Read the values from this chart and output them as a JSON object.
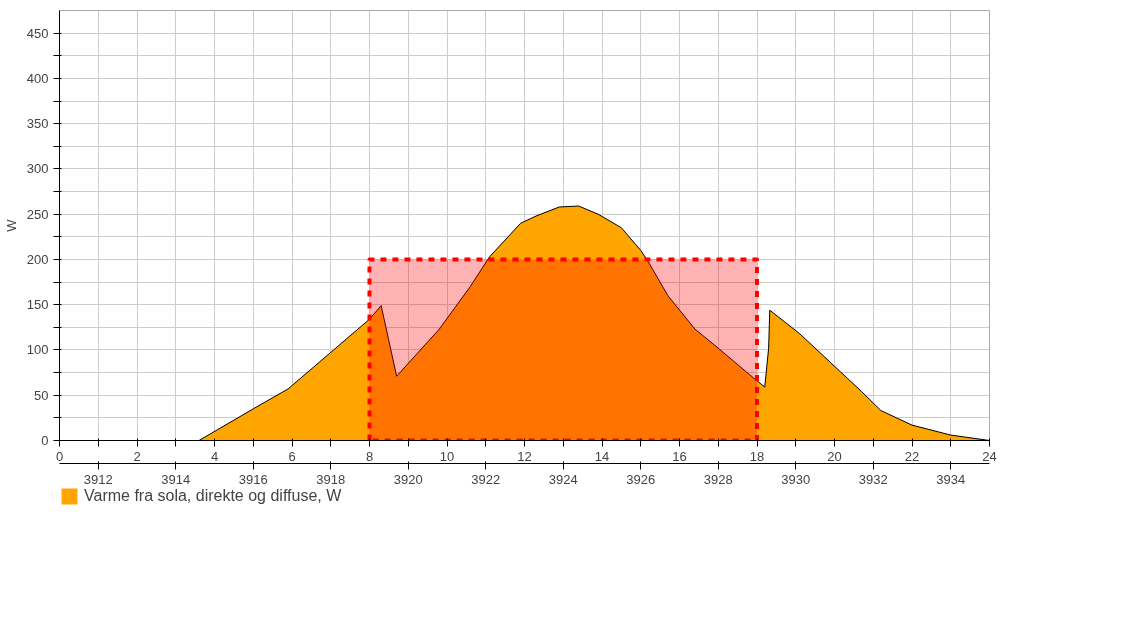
{
  "chart_data": {
    "type": "area",
    "ylabel": "W",
    "xlim": [
      0,
      24
    ],
    "ylim": [
      0,
      475
    ],
    "xticks": [
      0,
      {
        "value": 1,
        "label": null
      },
      2,
      {
        "value": 3,
        "label": null
      },
      4,
      {
        "value": 5,
        "label": null
      },
      6,
      {
        "value": 7,
        "label": null
      },
      8,
      {
        "value": 9,
        "label": null
      },
      10,
      {
        "value": 11,
        "label": null
      },
      12,
      {
        "value": 13,
        "label": null
      },
      14,
      {
        "value": 15,
        "label": null
      },
      16,
      {
        "value": 17,
        "label": null
      },
      18,
      {
        "value": 19,
        "label": null
      },
      20,
      {
        "value": 21,
        "label": null
      },
      22,
      {
        "value": 23,
        "label": null
      },
      24
    ],
    "yticks": [
      0,
      {
        "value": 25,
        "label": null
      },
      50,
      {
        "value": 75,
        "label": null
      },
      100,
      {
        "value": 125,
        "label": null
      },
      150,
      {
        "value": 175,
        "label": null
      },
      200,
      {
        "value": 225,
        "label": null
      },
      250,
      {
        "value": 275,
        "label": null
      },
      300,
      {
        "value": 325,
        "label": null
      },
      350,
      {
        "value": 375,
        "label": null
      },
      400,
      {
        "value": 425,
        "label": null
      },
      450
    ],
    "x2lim": [
      3911,
      3935
    ],
    "x2ticks": [
      3912,
      3914,
      3916,
      3918,
      3920,
      3922,
      3924,
      3926,
      3928,
      3930,
      3932,
      3934
    ],
    "grid": true,
    "legend": "bottom",
    "series": [
      {
        "name": "Varme fra sola, direkte og diffuse, W",
        "color": "#ffa500",
        "x": [
          0,
          3.6,
          5.0,
          5.9,
          8.0,
          8.3,
          8.7,
          9.8,
          10.6,
          11.1,
          11.9,
          12.3,
          12.9,
          13.4,
          13.9,
          14.5,
          15.0,
          15.2,
          15.7,
          16.4,
          17.0,
          17.8,
          18.2,
          18.3,
          18.33,
          19.1,
          19.9,
          20.7,
          21.2,
          22.0,
          23.0,
          24
        ],
        "values": [
          0,
          0,
          35,
          57,
          134,
          149,
          71,
          123,
          170,
          203,
          240,
          248,
          258,
          259,
          250,
          235,
          210,
          197,
          160,
          123,
          102,
          73,
          59,
          102,
          144,
          118,
          86,
          54,
          33,
          17,
          6,
          0
        ]
      },
      {
        "type": "area",
        "color": "#ff0000",
        "line_style": "dashed",
        "x": [
          8,
          18
        ],
        "values": [
          200,
          200
        ]
      }
    ]
  }
}
